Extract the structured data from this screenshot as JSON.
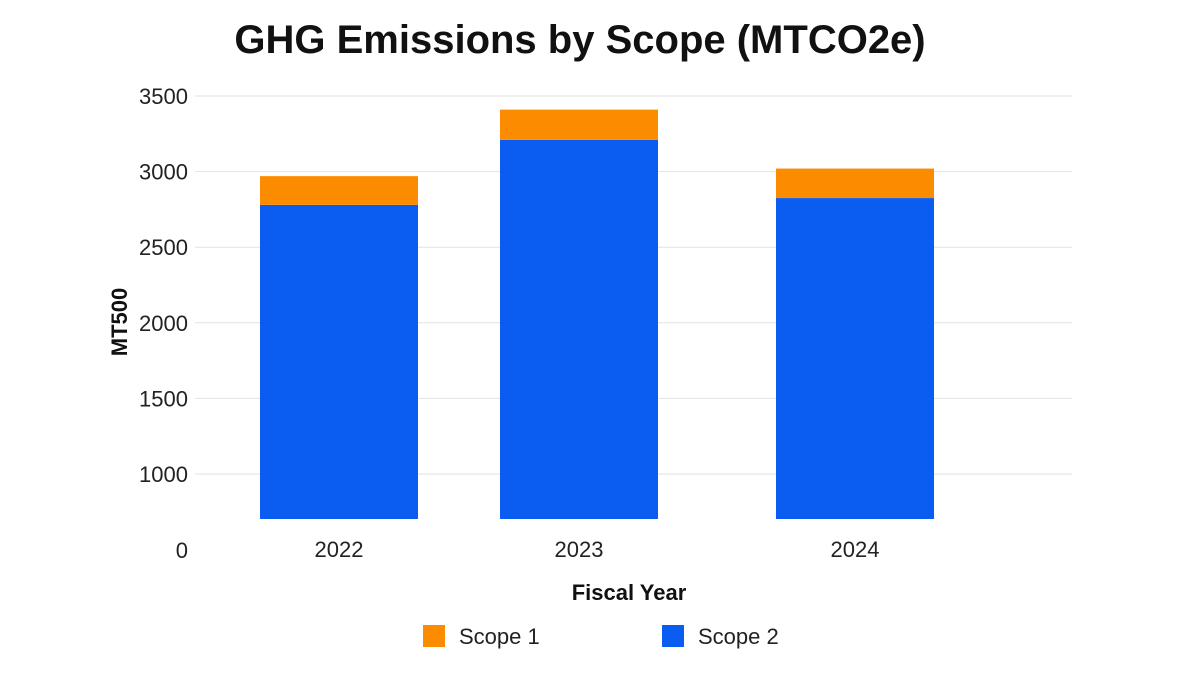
{
  "chart_data": {
    "type": "bar",
    "stacked": true,
    "title": "GHG Emissions by Scope (MTCO2e)",
    "xlabel": "Fiscal Year",
    "ylabel": "MT500",
    "categories": [
      "2022",
      "2023",
      "2024"
    ],
    "y_ticks": [
      "0",
      "1000",
      "1500",
      "2000",
      "2500",
      "3000",
      "3500"
    ],
    "series": [
      {
        "name": "Scope 2",
        "color": "#0b5cf0",
        "values": [
          2780,
          3210,
          2825
        ]
      },
      {
        "name": "Scope 1",
        "color": "#fb8c00",
        "values": [
          190,
          200,
          195
        ]
      }
    ],
    "legend_order": [
      "Scope 1",
      "Scope 2"
    ],
    "legend_position": "bottom",
    "grid": true
  }
}
